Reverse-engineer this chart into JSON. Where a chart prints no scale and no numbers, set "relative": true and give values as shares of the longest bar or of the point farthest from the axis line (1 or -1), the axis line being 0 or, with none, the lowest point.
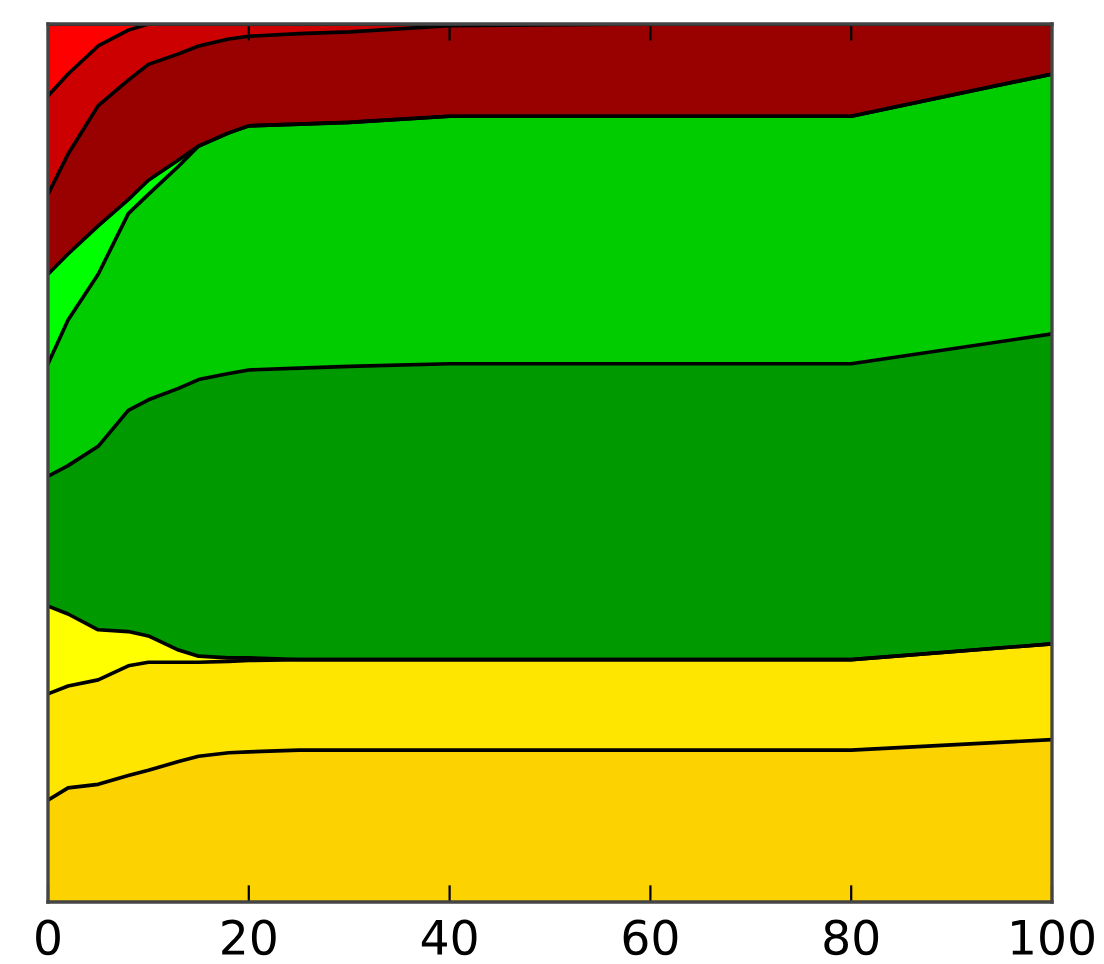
{
  "chart_data": {
    "type": "area",
    "stacked": true,
    "relative": true,
    "tick_labels": "x",
    "x": [
      0,
      2,
      5,
      8,
      10,
      13,
      15,
      18,
      20,
      25,
      30,
      40,
      60,
      80,
      100
    ],
    "xlim": [
      0,
      100
    ],
    "xticks": [
      0,
      20,
      40,
      60,
      80,
      100
    ],
    "series": [
      {
        "color": "#fcd200",
        "values": [
          0.116,
          0.13,
          0.134,
          0.144,
          0.15,
          0.16,
          0.166,
          0.17,
          0.171,
          0.173,
          0.173,
          0.173,
          0.173,
          0.173,
          0.185
        ]
      },
      {
        "color": "#ffe600",
        "values": [
          0.121,
          0.116,
          0.119,
          0.125,
          0.123,
          0.113,
          0.107,
          0.104,
          0.104,
          0.103,
          0.103,
          0.103,
          0.103,
          0.103,
          0.109
        ]
      },
      {
        "color": "#ffff00",
        "values": [
          0.1,
          0.082,
          0.057,
          0.039,
          0.03,
          0.014,
          0.007,
          0.004,
          0.003,
          0,
          0,
          0,
          0,
          0,
          0
        ]
      },
      {
        "color": "#009900",
        "values": [
          0.148,
          0.169,
          0.209,
          0.252,
          0.269,
          0.298,
          0.315,
          0.324,
          0.328,
          0.332,
          0.334,
          0.337,
          0.337,
          0.337,
          0.353
        ]
      },
      {
        "color": "#00cc00",
        "values": [
          0.128,
          0.166,
          0.196,
          0.224,
          0.234,
          0.253,
          0.266,
          0.274,
          0.278,
          0.278,
          0.278,
          0.282,
          0.282,
          0.282,
          0.296
        ]
      },
      {
        "color": "#00ff00",
        "values": [
          0.102,
          0.075,
          0.055,
          0.016,
          0.016,
          0.007,
          0,
          0,
          0,
          0,
          0,
          0,
          0,
          0,
          0
        ]
      },
      {
        "color": "#990000",
        "values": [
          0.091,
          0.114,
          0.137,
          0.136,
          0.132,
          0.121,
          0.114,
          0.107,
          0.102,
          0.103,
          0.103,
          0.103,
          0.105,
          0.105,
          0.057
        ]
      },
      {
        "color": "#cc0000",
        "values": [
          0.112,
          0.091,
          0.068,
          0.057,
          0.046,
          0.034,
          0.025,
          0.017,
          0.014,
          0.011,
          0.009,
          0.002,
          0,
          0,
          0
        ]
      },
      {
        "color": "#ff0000",
        "values": [
          0.082,
          0.057,
          0.025,
          0.007,
          0,
          0,
          0,
          0,
          0,
          0,
          0,
          0,
          0,
          0,
          0
        ]
      }
    ]
  }
}
